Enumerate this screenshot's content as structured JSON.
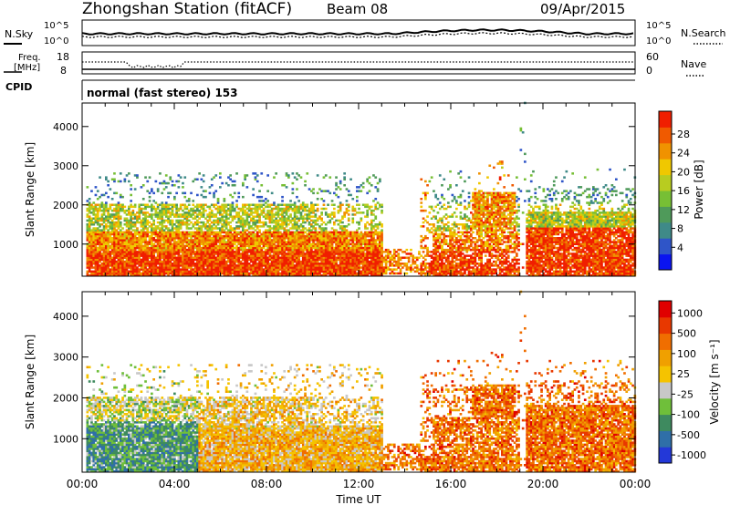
{
  "header": {
    "station": "Zhongshan Station (fitACF)",
    "beam": "Beam 08",
    "date": "09/Apr/2015"
  },
  "noise_panel": {
    "left_label": "N.Sky",
    "right_label": "N.Search",
    "left_ticks": [
      "10^5",
      "10^0"
    ],
    "right_ticks": [
      "10^5",
      "10^0"
    ]
  },
  "freq_panel": {
    "left_label_line1": "Freq.",
    "left_label_line2": "[MHz]",
    "left_ticks": [
      "18",
      "8"
    ],
    "right_label": "Nave",
    "right_ticks": [
      "60",
      "0"
    ]
  },
  "cpid_panel": {
    "label": "CPID",
    "text": "normal (fast stereo) 153"
  },
  "chart_data": [
    {
      "type": "heatmap",
      "name": "power",
      "ylabel": "Slant Range [km]",
      "ylim": [
        180,
        4600
      ],
      "yticks": [
        "1000",
        "2000",
        "3000",
        "4000"
      ],
      "xlim_hours": [
        0,
        24
      ],
      "colorbar": {
        "label": "Power [dB]",
        "ticks": [
          "4",
          "8",
          "12",
          "16",
          "20",
          "24",
          "28"
        ],
        "colors": [
          "#0a14f0",
          "#2f55c8",
          "#3f8a88",
          "#4f9a5a",
          "#77bf35",
          "#b8cc20",
          "#f0c800",
          "#f09200",
          "#f05a00",
          "#f01e00"
        ]
      }
    },
    {
      "type": "heatmap",
      "name": "velocity",
      "ylabel": "Slant Range [km]",
      "ylim": [
        180,
        4600
      ],
      "yticks": [
        "1000",
        "2000",
        "3000",
        "4000"
      ],
      "xlim_hours": [
        0,
        24
      ],
      "xticks": [
        "00:00",
        "04:00",
        "08:00",
        "12:00",
        "16:00",
        "20:00",
        "00:00"
      ],
      "xlabel": "Time UT",
      "colorbar": {
        "label": "Velocity [m s⁻¹]",
        "ticks": [
          "1000",
          "500",
          "100",
          "25",
          "-25",
          "-100",
          "-500",
          "-1000"
        ],
        "colors": [
          "#2338d8",
          "#2f6fa8",
          "#3e8a5f",
          "#6fbf3a",
          "#c8c8c8",
          "#f5c300",
          "#f0a000",
          "#f06e00",
          "#e83800",
          "#e00000"
        ]
      }
    }
  ]
}
